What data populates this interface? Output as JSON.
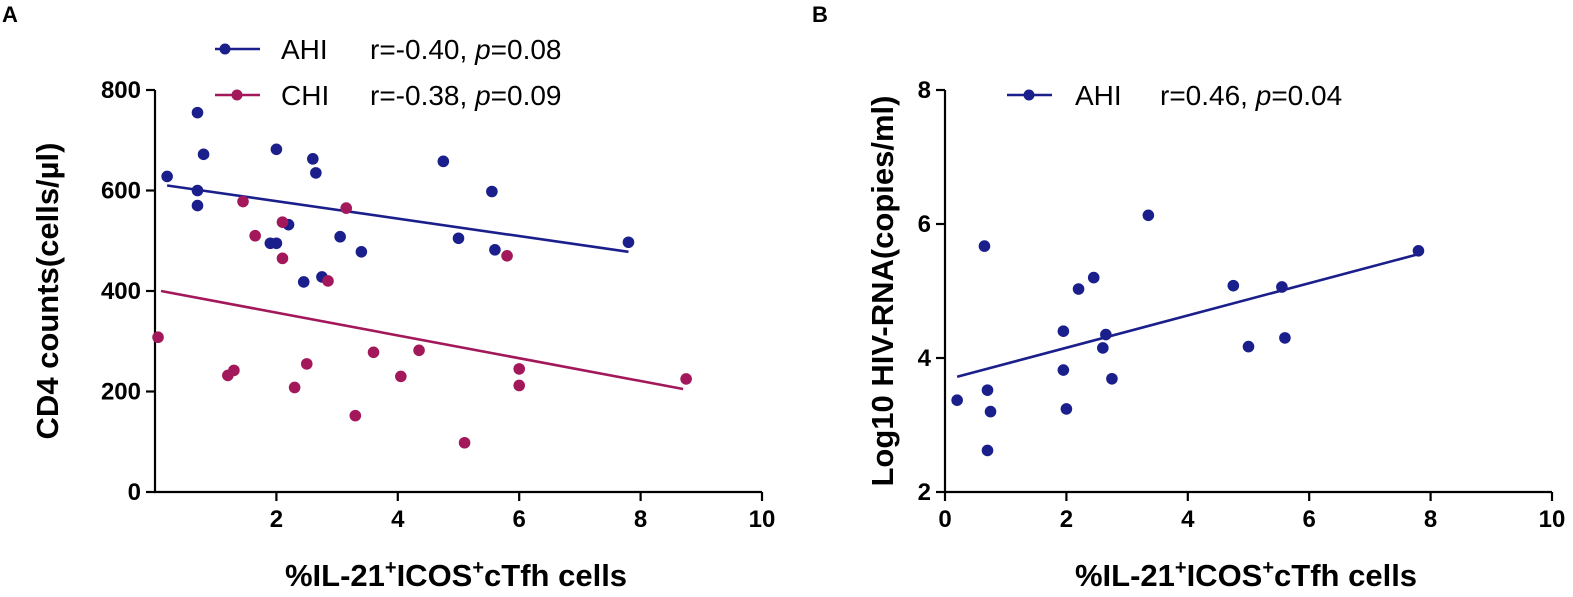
{
  "chart_data": [
    {
      "panel": "A",
      "type": "scatter",
      "xlabel_prefix": "%IL-21",
      "xlabel_sup1": "+",
      "xlabel_mid": "ICOS",
      "xlabel_sup2": "+",
      "xlabel_suffix": "cTfh cells",
      "ylabel": "CD4 counts(cells/µl)",
      "xlim": [
        0,
        10
      ],
      "ylim": [
        0,
        800
      ],
      "xticks": [
        2,
        4,
        6,
        8,
        10
      ],
      "yticks": [
        0,
        200,
        400,
        600,
        800
      ],
      "series": [
        {
          "name": "AHI",
          "color": "#1a1f8c",
          "stat_r": "r=-0.40, ",
          "stat_p_label": "p",
          "stat_p_value": "=0.08",
          "fit": {
            "x": [
              0.2,
              7.8
            ],
            "y": [
              610,
              478
            ]
          },
          "points": [
            {
              "x": 0.2,
              "y": 628
            },
            {
              "x": 0.7,
              "y": 755
            },
            {
              "x": 0.8,
              "y": 672
            },
            {
              "x": 0.7,
              "y": 600
            },
            {
              "x": 0.7,
              "y": 570
            },
            {
              "x": 1.9,
              "y": 495
            },
            {
              "x": 2.0,
              "y": 495
            },
            {
              "x": 2.0,
              "y": 682
            },
            {
              "x": 2.2,
              "y": 532
            },
            {
              "x": 2.6,
              "y": 663
            },
            {
              "x": 2.65,
              "y": 635
            },
            {
              "x": 2.45,
              "y": 418
            },
            {
              "x": 2.75,
              "y": 428
            },
            {
              "x": 3.05,
              "y": 508
            },
            {
              "x": 3.4,
              "y": 478
            },
            {
              "x": 4.75,
              "y": 658
            },
            {
              "x": 5.0,
              "y": 505
            },
            {
              "x": 5.55,
              "y": 598
            },
            {
              "x": 5.6,
              "y": 482
            },
            {
              "x": 7.8,
              "y": 497
            }
          ]
        },
        {
          "name": "CHI",
          "color": "#a3185a",
          "stat_r": "r=-0.38, ",
          "stat_p_label": "p",
          "stat_p_value": "=0.09",
          "fit": {
            "x": [
              0.1,
              8.7
            ],
            "y": [
              400,
              205
            ]
          },
          "points": [
            {
              "x": 0.05,
              "y": 308
            },
            {
              "x": 1.2,
              "y": 232
            },
            {
              "x": 1.3,
              "y": 242
            },
            {
              "x": 1.45,
              "y": 578
            },
            {
              "x": 1.65,
              "y": 510
            },
            {
              "x": 2.1,
              "y": 537
            },
            {
              "x": 2.1,
              "y": 465
            },
            {
              "x": 2.3,
              "y": 208
            },
            {
              "x": 2.5,
              "y": 255
            },
            {
              "x": 2.85,
              "y": 420
            },
            {
              "x": 3.15,
              "y": 565
            },
            {
              "x": 3.3,
              "y": 152
            },
            {
              "x": 3.6,
              "y": 278
            },
            {
              "x": 4.05,
              "y": 230
            },
            {
              "x": 4.35,
              "y": 282
            },
            {
              "x": 5.1,
              "y": 98
            },
            {
              "x": 5.8,
              "y": 470
            },
            {
              "x": 6.0,
              "y": 245
            },
            {
              "x": 6.0,
              "y": 212
            },
            {
              "x": 8.75,
              "y": 225
            }
          ]
        }
      ]
    },
    {
      "panel": "B",
      "type": "scatter",
      "xlabel_prefix": "%IL-21",
      "xlabel_sup1": "+",
      "xlabel_mid": "ICOS",
      "xlabel_sup2": "+",
      "xlabel_suffix": "cTfh cells",
      "ylabel": "Log10 HIV-RNA(copies/ml)",
      "xlim": [
        0,
        10
      ],
      "ylim": [
        2,
        8
      ],
      "xticks": [
        0,
        2,
        4,
        6,
        8,
        10
      ],
      "yticks": [
        2,
        4,
        6,
        8
      ],
      "series": [
        {
          "name": "AHI",
          "color": "#1a1f8c",
          "stat_r": "r=0.46, ",
          "stat_p_label": "p",
          "stat_p_value": "=0.04",
          "fit": {
            "x": [
              0.2,
              7.8
            ],
            "y": [
              3.72,
              5.55
            ]
          },
          "points": [
            {
              "x": 0.2,
              "y": 3.37
            },
            {
              "x": 0.65,
              "y": 5.67
            },
            {
              "x": 0.7,
              "y": 3.52
            },
            {
              "x": 0.75,
              "y": 3.2
            },
            {
              "x": 0.7,
              "y": 2.62
            },
            {
              "x": 1.95,
              "y": 4.4
            },
            {
              "x": 1.95,
              "y": 3.82
            },
            {
              "x": 2.0,
              "y": 3.24
            },
            {
              "x": 2.2,
              "y": 5.03
            },
            {
              "x": 2.45,
              "y": 5.2
            },
            {
              "x": 2.6,
              "y": 4.15
            },
            {
              "x": 2.65,
              "y": 4.35
            },
            {
              "x": 2.75,
              "y": 3.69
            },
            {
              "x": 3.35,
              "y": 6.13
            },
            {
              "x": 4.75,
              "y": 5.08
            },
            {
              "x": 5.0,
              "y": 4.17
            },
            {
              "x": 5.55,
              "y": 5.06
            },
            {
              "x": 5.6,
              "y": 4.3
            },
            {
              "x": 7.8,
              "y": 5.6
            }
          ]
        }
      ]
    }
  ]
}
